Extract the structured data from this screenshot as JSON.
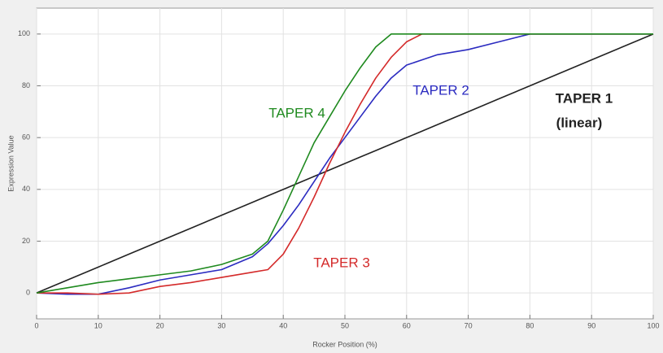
{
  "chart_data": {
    "type": "line",
    "x_label": "Rocker Position (%)",
    "y_label": "Expression Value",
    "x": [
      0,
      5,
      10,
      15,
      20,
      25,
      30,
      35,
      37.5,
      40,
      42.5,
      45,
      47.5,
      50,
      52.5,
      55,
      57.5,
      60,
      62.5,
      65,
      70,
      75,
      80,
      90,
      100
    ],
    "series": [
      {
        "name": "TAPER 1",
        "color": "#222222",
        "values": [
          0,
          5,
          10,
          15,
          20,
          25,
          30,
          35,
          37.5,
          40,
          42.5,
          45,
          47.5,
          50,
          52.5,
          55,
          57.5,
          60,
          62.5,
          65,
          70,
          75,
          80,
          90,
          100
        ]
      },
      {
        "name": "TAPER 2",
        "color": "#2b2bc0",
        "values": [
          0,
          -0.5,
          -0.5,
          2,
          5,
          7,
          9,
          14,
          19,
          26,
          34,
          43,
          52,
          60,
          68,
          76,
          83,
          88,
          90,
          92,
          94,
          97,
          100,
          100,
          100
        ]
      },
      {
        "name": "TAPER 3",
        "color": "#d42a2a",
        "values": [
          0,
          0,
          -0.5,
          0,
          2.5,
          4,
          6,
          8,
          9,
          15,
          25,
          37,
          50,
          62,
          73,
          83,
          91,
          97,
          100,
          100,
          100,
          100,
          100,
          100,
          100
        ]
      },
      {
        "name": "TAPER 4",
        "color": "#1f8a1f",
        "values": [
          0,
          2,
          4,
          5.5,
          7,
          8.5,
          11,
          15,
          20,
          32,
          45,
          58,
          68,
          78,
          87,
          95,
          100,
          100,
          100,
          100,
          100,
          100,
          100,
          100,
          100
        ]
      }
    ],
    "annotation": "(linear)",
    "xlim": [
      0,
      100
    ],
    "xticks": [
      0,
      10,
      20,
      30,
      40,
      50,
      60,
      70,
      80,
      90,
      100
    ],
    "ylim": [
      -10,
      110
    ],
    "yticks": [
      0,
      20,
      40,
      60,
      80,
      100
    ],
    "grid": true
  }
}
